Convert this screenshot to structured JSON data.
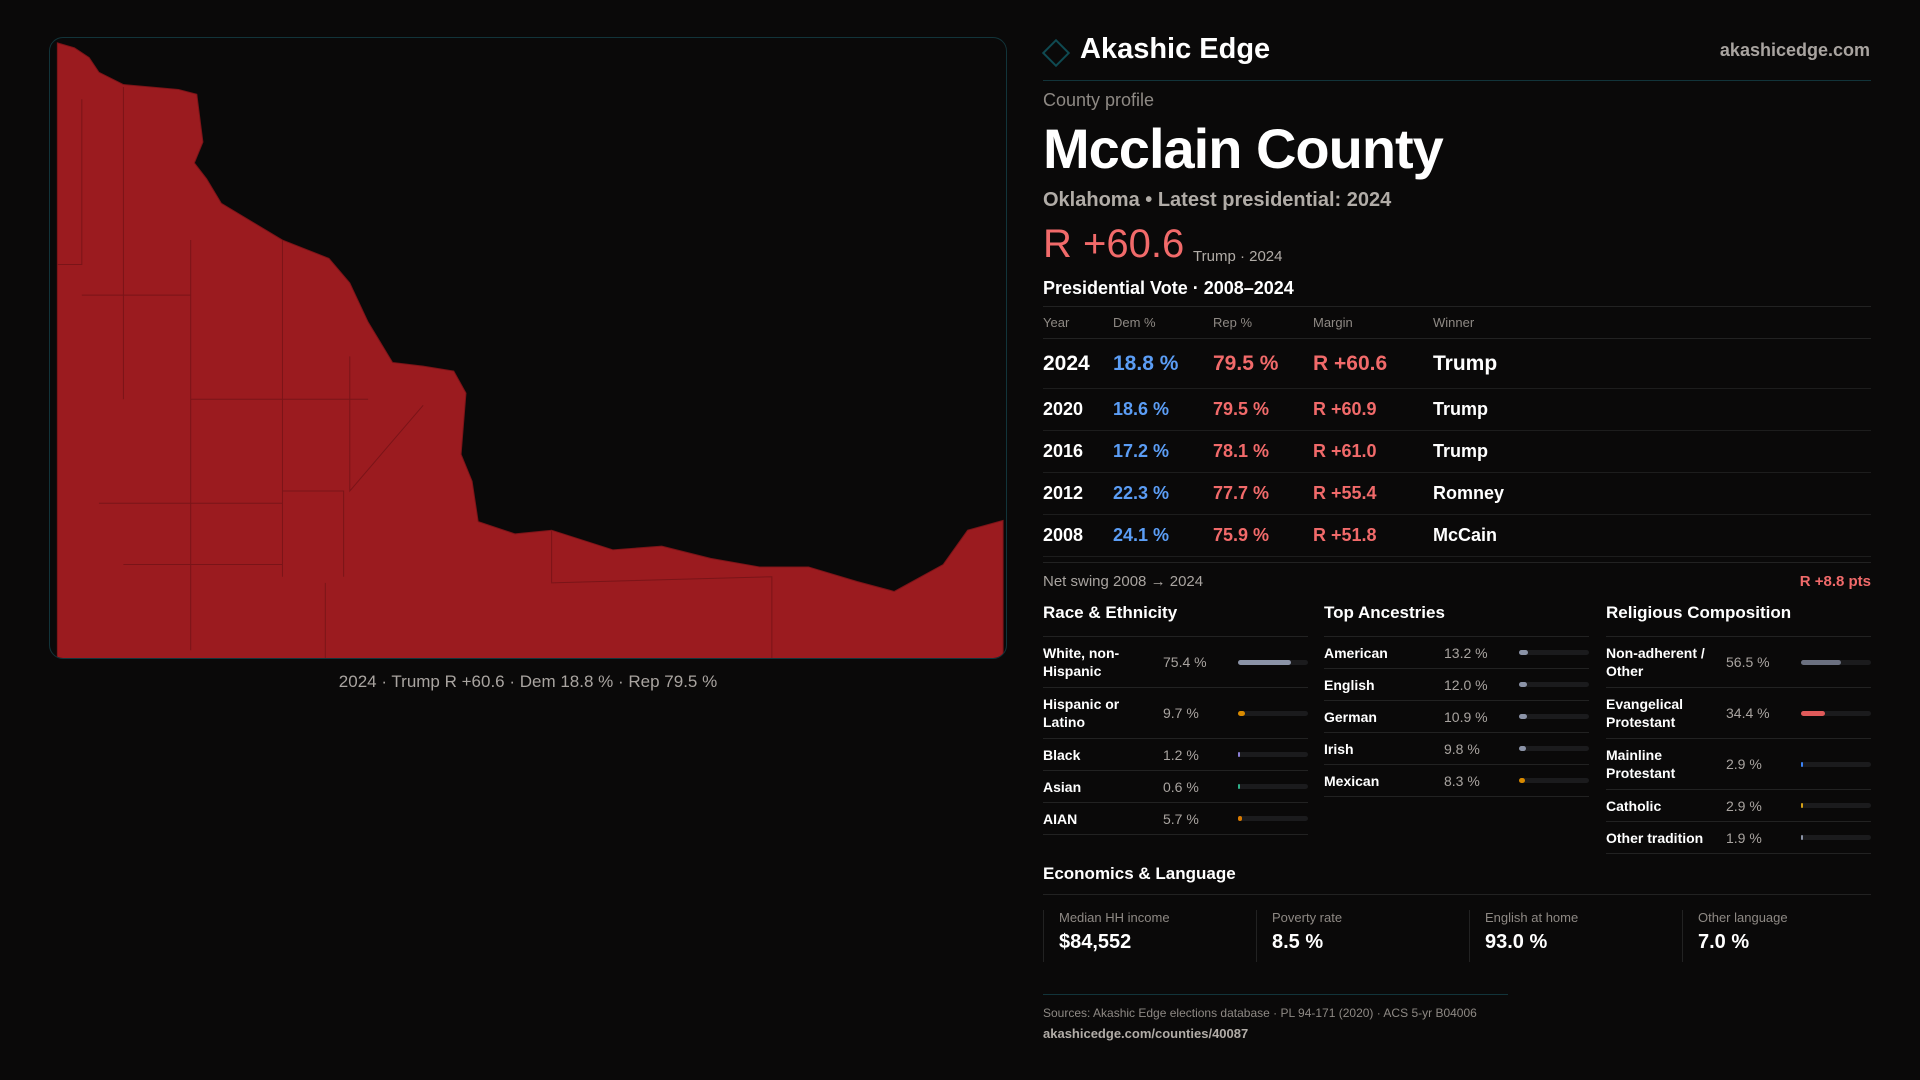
{
  "brand": {
    "name": "Akashic Edge",
    "site": "akashicedge.com"
  },
  "profile": {
    "eyebrow": "County profile",
    "title": "Mcclain County",
    "subtitle": "Oklahoma • Latest presidential: 2024",
    "margin": "R +60.6",
    "margin_note": "Trump · 2024"
  },
  "map": {
    "caption": "2024 · Trump R +60.6 · Dem 18.8 % · Rep 79.5 %",
    "fill_color": "#9b1b1f"
  },
  "vote": {
    "title": "Presidential Vote · 2008–2024",
    "headers": [
      "Year",
      "Dem %",
      "Rep %",
      "Margin",
      "Winner"
    ],
    "rows": [
      [
        "2024",
        "18.8 %",
        "79.5 %",
        "R +60.6",
        "Trump"
      ],
      [
        "2020",
        "18.6 %",
        "79.5 %",
        "R +60.9",
        "Trump"
      ],
      [
        "2016",
        "17.2 %",
        "78.1 %",
        "R +61.0",
        "Trump"
      ],
      [
        "2012",
        "22.3 %",
        "77.7 %",
        "R +55.4",
        "Romney"
      ],
      [
        "2008",
        "24.1 %",
        "75.9 %",
        "R +51.8",
        "McCain"
      ]
    ],
    "swing_label": "Net swing 2008 → 2024",
    "swing_value": "R +8.8 pts"
  },
  "race": {
    "title": "Race & Ethnicity",
    "items": [
      {
        "label": "White, non-Hispanic",
        "value": "75.4 %",
        "pct": 75.4,
        "color": "#8b93a7"
      },
      {
        "label": "Hispanic or Latino",
        "value": "9.7 %",
        "pct": 9.7,
        "color": "#d98a00"
      },
      {
        "label": "Black",
        "value": "1.2 %",
        "pct": 1.2,
        "color": "#8b7fd4"
      },
      {
        "label": "Asian",
        "value": "0.6 %",
        "pct": 0.6,
        "color": "#2fb08a"
      },
      {
        "label": "AIAN",
        "value": "5.7 %",
        "pct": 5.7,
        "color": "#d97a00"
      }
    ]
  },
  "ancestry": {
    "title": "Top Ancestries",
    "items": [
      {
        "label": "American",
        "value": "13.2 %",
        "pct": 13.2,
        "color": "#8b93a7"
      },
      {
        "label": "English",
        "value": "12.0 %",
        "pct": 12.0,
        "color": "#8b93a7"
      },
      {
        "label": "German",
        "value": "10.9 %",
        "pct": 10.9,
        "color": "#8b93a7"
      },
      {
        "label": "Irish",
        "value": "9.8 %",
        "pct": 9.8,
        "color": "#8b93a7"
      },
      {
        "label": "Mexican",
        "value": "8.3 %",
        "pct": 8.3,
        "color": "#d98a00"
      }
    ]
  },
  "religion": {
    "title": "Religious Composition",
    "items": [
      {
        "label": "Non-adherent / Other",
        "value": "56.5 %",
        "pct": 56.5,
        "color": "#6b7080"
      },
      {
        "label": "Evangelical Protestant",
        "value": "34.4 %",
        "pct": 34.4,
        "color": "#e05a5a"
      },
      {
        "label": "Mainline Protestant",
        "value": "2.9 %",
        "pct": 2.9,
        "color": "#3b82f6"
      },
      {
        "label": "Catholic",
        "value": "2.9 %",
        "pct": 2.9,
        "color": "#d4a017"
      },
      {
        "label": "Other tradition",
        "value": "1.9 %",
        "pct": 1.9,
        "color": "#8b93a7"
      }
    ]
  },
  "economics": {
    "title": "Economics & Language",
    "cards": [
      {
        "label": "Median HH income",
        "value": "$84,552"
      },
      {
        "label": "Poverty rate",
        "value": "8.5 %"
      },
      {
        "label": "English at home",
        "value": "93.0 %"
      },
      {
        "label": "Other language",
        "value": "7.0 %"
      }
    ]
  },
  "footer": {
    "sources": "Sources: Akashic Edge elections database · PL 94-171 (2020) · ACS 5-yr B04006",
    "url": "akashicedge.com/counties/40087"
  }
}
